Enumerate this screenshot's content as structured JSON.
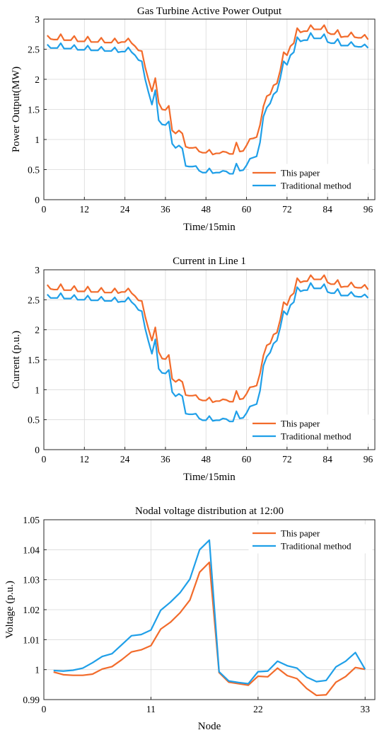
{
  "colors": {
    "this_paper": "#f26b2b",
    "traditional": "#1f9fe8"
  },
  "chart_data": [
    {
      "type": "line",
      "title": "Gas Turbine Active Power Output",
      "xlabel": "Time/15min",
      "ylabel": "Power Output(MW)",
      "xlim": [
        0,
        98
      ],
      "ylim": [
        0,
        3
      ],
      "xticks": [
        0,
        12,
        24,
        36,
        48,
        60,
        72,
        84,
        96
      ],
      "yticks": [
        0,
        0.5,
        1,
        1.5,
        2,
        2.5,
        3
      ],
      "ytick_labels": [
        "0",
        "0.5",
        "1",
        "1.5",
        "2",
        "2.5",
        "3"
      ],
      "grid": true,
      "legend": "bottom-right",
      "x": [
        1,
        2,
        3,
        4,
        5,
        6,
        7,
        8,
        9,
        10,
        11,
        12,
        13,
        14,
        15,
        16,
        17,
        18,
        19,
        20,
        21,
        22,
        23,
        24,
        25,
        26,
        27,
        28,
        29,
        30,
        31,
        32,
        33,
        34,
        35,
        36,
        37,
        38,
        39,
        40,
        41,
        42,
        43,
        44,
        45,
        46,
        47,
        48,
        49,
        50,
        51,
        52,
        53,
        54,
        55,
        56,
        57,
        58,
        59,
        60,
        61,
        62,
        63,
        64,
        65,
        66,
        67,
        68,
        69,
        70,
        71,
        72,
        73,
        74,
        75,
        76,
        77,
        78,
        79,
        80,
        81,
        82,
        83,
        84,
        85,
        86,
        87,
        88,
        89,
        90,
        91,
        92,
        93,
        94,
        95,
        96
      ],
      "series": [
        {
          "name": "This paper",
          "color_key": "this_paper",
          "values": [
            2.73,
            2.67,
            2.66,
            2.66,
            2.75,
            2.65,
            2.65,
            2.65,
            2.72,
            2.63,
            2.63,
            2.63,
            2.71,
            2.62,
            2.62,
            2.62,
            2.69,
            2.61,
            2.61,
            2.61,
            2.68,
            2.6,
            2.62,
            2.62,
            2.68,
            2.6,
            2.55,
            2.48,
            2.47,
            2.2,
            1.99,
            1.8,
            2.02,
            1.61,
            1.5,
            1.49,
            1.56,
            1.15,
            1.1,
            1.15,
            1.1,
            0.88,
            0.86,
            0.86,
            0.87,
            0.8,
            0.78,
            0.78,
            0.83,
            0.75,
            0.77,
            0.77,
            0.8,
            0.79,
            0.76,
            0.76,
            0.95,
            0.8,
            0.81,
            0.9,
            1.01,
            1.02,
            1.04,
            1.24,
            1.55,
            1.72,
            1.75,
            1.9,
            1.93,
            2.15,
            2.45,
            2.4,
            2.55,
            2.6,
            2.85,
            2.78,
            2.8,
            2.8,
            2.9,
            2.83,
            2.83,
            2.83,
            2.9,
            2.78,
            2.75,
            2.75,
            2.82,
            2.7,
            2.71,
            2.71,
            2.78,
            2.7,
            2.69,
            2.69,
            2.74,
            2.66
          ]
        },
        {
          "name": "Traditional method",
          "color_key": "traditional",
          "values": [
            2.58,
            2.52,
            2.52,
            2.52,
            2.6,
            2.51,
            2.51,
            2.51,
            2.57,
            2.49,
            2.49,
            2.49,
            2.56,
            2.48,
            2.48,
            2.48,
            2.54,
            2.47,
            2.47,
            2.47,
            2.53,
            2.45,
            2.46,
            2.46,
            2.53,
            2.45,
            2.4,
            2.32,
            2.3,
            2.0,
            1.78,
            1.58,
            1.82,
            1.32,
            1.25,
            1.24,
            1.3,
            0.93,
            0.86,
            0.9,
            0.85,
            0.56,
            0.55,
            0.55,
            0.56,
            0.48,
            0.45,
            0.45,
            0.52,
            0.44,
            0.45,
            0.45,
            0.48,
            0.47,
            0.43,
            0.43,
            0.6,
            0.48,
            0.49,
            0.57,
            0.68,
            0.7,
            0.72,
            0.95,
            1.38,
            1.53,
            1.6,
            1.75,
            1.8,
            2.02,
            2.3,
            2.24,
            2.4,
            2.45,
            2.7,
            2.63,
            2.65,
            2.65,
            2.77,
            2.68,
            2.68,
            2.68,
            2.75,
            2.62,
            2.6,
            2.6,
            2.67,
            2.56,
            2.56,
            2.56,
            2.62,
            2.55,
            2.54,
            2.54,
            2.58,
            2.52
          ]
        }
      ]
    },
    {
      "type": "line",
      "title": "Current in Line 1",
      "xlabel": "Time/15min",
      "ylabel": "Current (p.u.)",
      "xlim": [
        0,
        98
      ],
      "ylim": [
        0,
        3
      ],
      "xticks": [
        0,
        12,
        24,
        36,
        48,
        60,
        72,
        84,
        96
      ],
      "yticks": [
        0,
        0.5,
        1,
        1.5,
        2,
        2.5,
        3
      ],
      "ytick_labels": [
        "0",
        "0.5",
        "1",
        "1.5",
        "2",
        "2.5",
        "3"
      ],
      "grid": true,
      "legend": "bottom-right",
      "x": [
        1,
        2,
        3,
        4,
        5,
        6,
        7,
        8,
        9,
        10,
        11,
        12,
        13,
        14,
        15,
        16,
        17,
        18,
        19,
        20,
        21,
        22,
        23,
        24,
        25,
        26,
        27,
        28,
        29,
        30,
        31,
        32,
        33,
        34,
        35,
        36,
        37,
        38,
        39,
        40,
        41,
        42,
        43,
        44,
        45,
        46,
        47,
        48,
        49,
        50,
        51,
        52,
        53,
        54,
        55,
        56,
        57,
        58,
        59,
        60,
        61,
        62,
        63,
        64,
        65,
        66,
        67,
        68,
        69,
        70,
        71,
        72,
        73,
        74,
        75,
        76,
        77,
        78,
        79,
        80,
        81,
        82,
        83,
        84,
        85,
        86,
        87,
        88,
        89,
        90,
        91,
        92,
        93,
        94,
        95,
        96
      ],
      "series": [
        {
          "name": "This paper",
          "color_key": "this_paper",
          "values": [
            2.75,
            2.68,
            2.67,
            2.67,
            2.76,
            2.66,
            2.66,
            2.66,
            2.73,
            2.64,
            2.64,
            2.64,
            2.72,
            2.63,
            2.63,
            2.63,
            2.7,
            2.62,
            2.62,
            2.62,
            2.69,
            2.61,
            2.63,
            2.63,
            2.69,
            2.61,
            2.56,
            2.49,
            2.48,
            2.22,
            2.01,
            1.82,
            2.04,
            1.63,
            1.52,
            1.51,
            1.58,
            1.18,
            1.13,
            1.17,
            1.13,
            0.91,
            0.9,
            0.9,
            0.91,
            0.84,
            0.82,
            0.82,
            0.87,
            0.79,
            0.81,
            0.81,
            0.84,
            0.83,
            0.8,
            0.8,
            0.98,
            0.84,
            0.85,
            0.93,
            1.04,
            1.05,
            1.07,
            1.27,
            1.57,
            1.74,
            1.77,
            1.92,
            1.95,
            2.17,
            2.46,
            2.41,
            2.56,
            2.61,
            2.86,
            2.79,
            2.81,
            2.81,
            2.91,
            2.84,
            2.84,
            2.84,
            2.91,
            2.79,
            2.76,
            2.76,
            2.83,
            2.71,
            2.72,
            2.72,
            2.79,
            2.71,
            2.7,
            2.7,
            2.75,
            2.67
          ]
        },
        {
          "name": "Traditional method",
          "color_key": "traditional",
          "values": [
            2.59,
            2.53,
            2.53,
            2.53,
            2.61,
            2.52,
            2.52,
            2.52,
            2.58,
            2.5,
            2.5,
            2.5,
            2.57,
            2.49,
            2.49,
            2.49,
            2.55,
            2.48,
            2.48,
            2.48,
            2.54,
            2.46,
            2.47,
            2.47,
            2.54,
            2.46,
            2.41,
            2.33,
            2.31,
            2.02,
            1.8,
            1.6,
            1.84,
            1.35,
            1.28,
            1.27,
            1.33,
            0.96,
            0.89,
            0.93,
            0.89,
            0.6,
            0.59,
            0.59,
            0.6,
            0.52,
            0.49,
            0.49,
            0.56,
            0.48,
            0.49,
            0.49,
            0.52,
            0.51,
            0.47,
            0.47,
            0.64,
            0.52,
            0.53,
            0.61,
            0.72,
            0.74,
            0.76,
            0.98,
            1.4,
            1.55,
            1.62,
            1.77,
            1.82,
            2.04,
            2.31,
            2.25,
            2.41,
            2.46,
            2.71,
            2.64,
            2.66,
            2.66,
            2.78,
            2.69,
            2.69,
            2.69,
            2.76,
            2.63,
            2.61,
            2.61,
            2.68,
            2.57,
            2.57,
            2.57,
            2.63,
            2.56,
            2.55,
            2.55,
            2.59,
            2.53
          ]
        }
      ]
    },
    {
      "type": "line",
      "title": "Nodal voltage distribution at 12:00",
      "xlabel": "Node",
      "ylabel": "Voltage (p.u.)",
      "xlim": [
        0,
        34
      ],
      "ylim": [
        0.99,
        1.05
      ],
      "xticks": [
        0,
        11,
        22,
        33
      ],
      "yticks": [
        0.99,
        1.0,
        1.01,
        1.02,
        1.03,
        1.04,
        1.05
      ],
      "ytick_labels": [
        "0.99",
        "1",
        "1.01",
        "1.02",
        "1.03",
        "1.04",
        "1.05"
      ],
      "grid": true,
      "legend": "top-right",
      "x": [
        1,
        2,
        3,
        4,
        5,
        6,
        7,
        8,
        9,
        10,
        11,
        12,
        13,
        14,
        15,
        16,
        17,
        18,
        19,
        20,
        21,
        22,
        23,
        24,
        25,
        26,
        27,
        28,
        29,
        30,
        31,
        32,
        33
      ],
      "series": [
        {
          "name": "This paper",
          "color_key": "this_paper",
          "values": [
            0.9992,
            0.9983,
            0.9981,
            0.9981,
            0.9985,
            1.0002,
            1.001,
            1.0033,
            1.0059,
            1.0066,
            1.008,
            1.0135,
            1.0158,
            1.019,
            1.0232,
            1.0325,
            1.0358,
            0.999,
            0.9958,
            0.9953,
            0.9948,
            0.9978,
            0.9976,
            1.0005,
            0.998,
            0.997,
            0.9937,
            0.9914,
            0.9916,
            0.9958,
            0.9977,
            1.0007,
            1.0001
          ]
        },
        {
          "name": "Traditional method",
          "color_key": "traditional",
          "values": [
            0.9997,
            0.9995,
            0.9998,
            1.0005,
            1.0023,
            1.0044,
            1.0053,
            1.0083,
            1.0113,
            1.0117,
            1.0132,
            1.0198,
            1.0225,
            1.0257,
            1.0302,
            1.04,
            1.0432,
            0.9993,
            0.9962,
            0.9957,
            0.9953,
            0.9993,
            0.9995,
            1.0028,
            1.0013,
            1.0005,
            0.9975,
            0.996,
            0.9964,
            1.0009,
            1.0028,
            1.0057,
            1.0001
          ]
        }
      ]
    }
  ]
}
